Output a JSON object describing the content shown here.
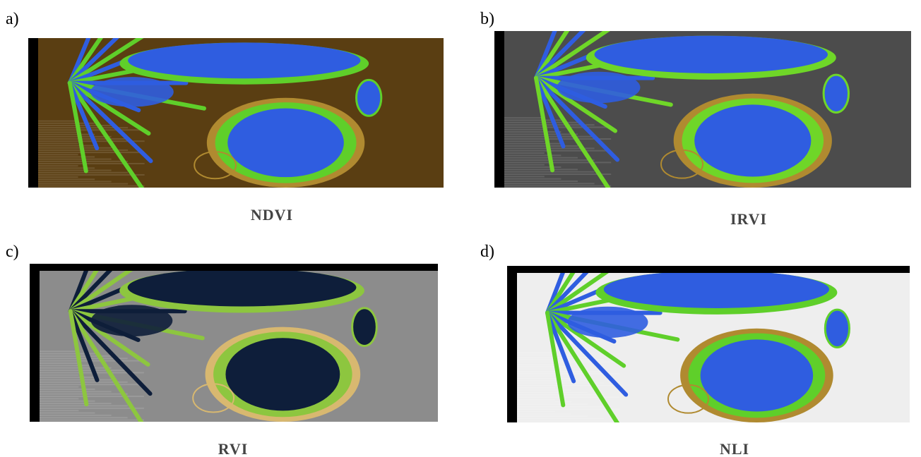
{
  "panels": [
    {
      "label": "a)",
      "caption": "NDVI"
    },
    {
      "label": "b)",
      "caption": "IRVI"
    },
    {
      "label": "c)",
      "caption": "RVI"
    },
    {
      "label": "d)",
      "caption": "NLI"
    }
  ]
}
